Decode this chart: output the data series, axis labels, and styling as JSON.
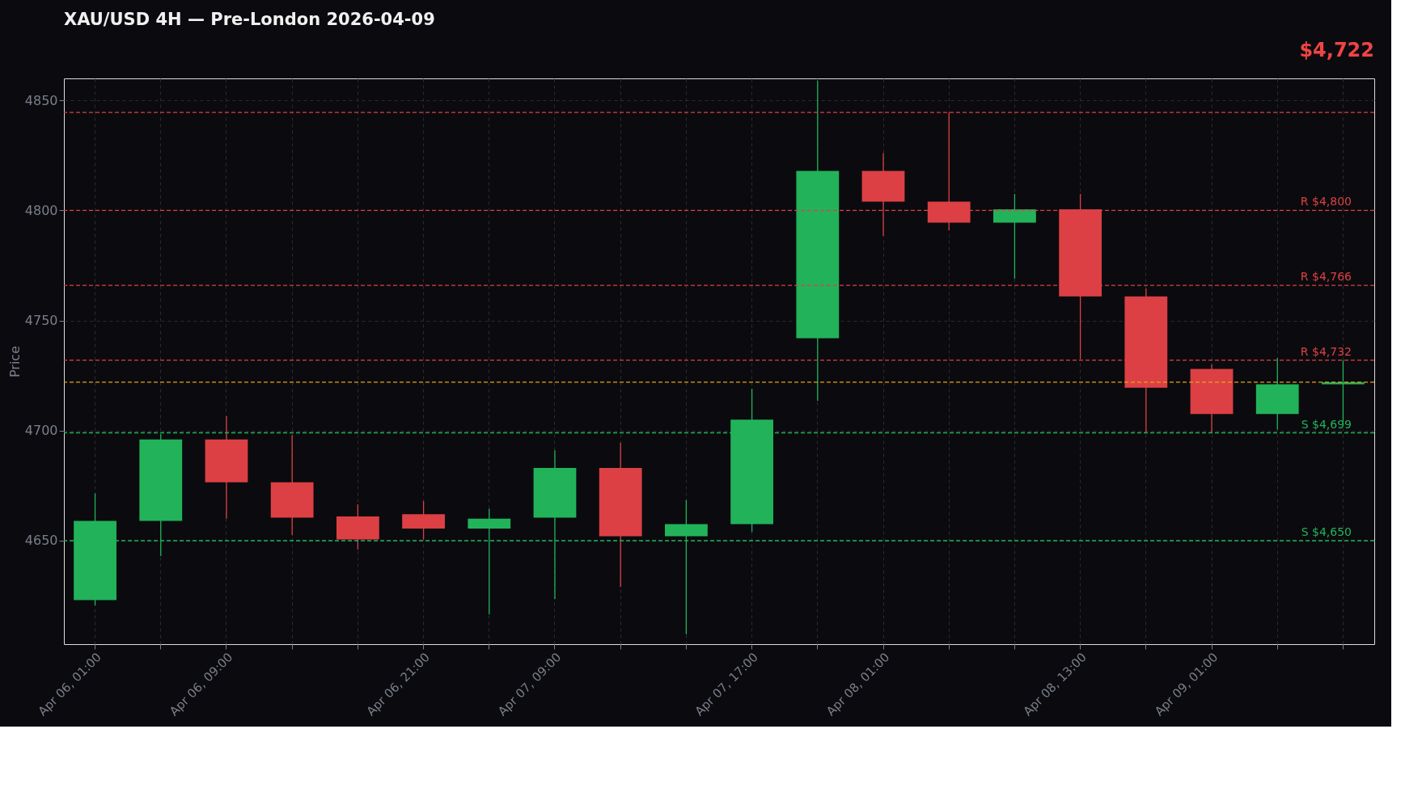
{
  "chart_data": {
    "type": "candlestick",
    "title": "XAU/USD 4H — Pre-London 2026-04-09",
    "ylabel": "Price",
    "categories": [
      "Apr 06, 01:00",
      null,
      "Apr 06, 09:00",
      null,
      null,
      "Apr 06, 21:00",
      null,
      "Apr 07, 09:00",
      null,
      null,
      "Apr 07, 17:00",
      null,
      "Apr 08, 01:00",
      null,
      null,
      "Apr 08, 13:00",
      null,
      "Apr 09, 01:00",
      null,
      null
    ],
    "ohlc": [
      [
        4623,
        4671.5,
        4620.5,
        4659
      ],
      [
        4659,
        4698.5,
        4643,
        4696
      ],
      [
        4696,
        4706.5,
        4660,
        4676.5
      ],
      [
        4676.5,
        4698,
        4652.5,
        4660.5
      ],
      [
        4661,
        4666.5,
        4646,
        4650.5
      ],
      [
        4662,
        4668,
        4650.5,
        4655.5
      ],
      [
        4655.5,
        4664.5,
        4616.5,
        4660
      ],
      [
        4660.5,
        4691,
        4623.5,
        4683
      ],
      [
        4683,
        4694.5,
        4629,
        4652
      ],
      [
        4652,
        4668.5,
        4607.5,
        4657.5
      ],
      [
        4657.5,
        4719,
        4654,
        4705
      ],
      [
        4742,
        4859,
        4713.5,
        4818
      ],
      [
        4818,
        4826,
        4788.5,
        4804
      ],
      [
        4804,
        4844.5,
        4791,
        4794.5
      ],
      [
        4794.5,
        4807.5,
        4769,
        4800.5
      ],
      [
        4800.5,
        4807.5,
        4732.5,
        4761
      ],
      [
        4761,
        4764.5,
        4699,
        4719.5
      ],
      [
        4728,
        4730,
        4699,
        4707.5
      ],
      [
        4707.5,
        4733,
        4700.5,
        4721
      ],
      [
        4721,
        4732,
        4704,
        4722
      ]
    ],
    "colors": [
      "#22b35a",
      "#22b35a",
      "#dc4044",
      "#dc4044",
      "#dc4044",
      "#dc4044",
      "#22b35a",
      "#22b35a",
      "#dc4044",
      "#22b35a",
      "#22b35a",
      "#22b35a",
      "#dc4044",
      "#dc4044",
      "#22b35a",
      "#dc4044",
      "#dc4044",
      "#dc4044",
      "#22b35a",
      "#22b35a"
    ],
    "ylim": [
      4603,
      4860
    ],
    "yticks": [
      4650,
      4700,
      4750,
      4800,
      4850
    ],
    "grid": true,
    "ref_lines": [
      {
        "axis": "y",
        "value": 4844.5,
        "color": "#dc4044",
        "line_style": "dashed"
      },
      {
        "axis": "y",
        "value": 4800,
        "label": "R $4,800",
        "color": "#dc4044",
        "line_style": "dashed"
      },
      {
        "axis": "y",
        "value": 4766,
        "label": "R $4,766",
        "color": "#dc4044",
        "line_style": "dashed"
      },
      {
        "axis": "y",
        "value": 4732,
        "label": "R $4,732",
        "color": "#dc4044",
        "line_style": "dashed"
      },
      {
        "axis": "y",
        "value": 4722,
        "color": "#e8a317",
        "line_style": "dashed"
      },
      {
        "axis": "y",
        "value": 4699,
        "label": "S $4,699",
        "color": "#22b35a",
        "line_style": "dashed"
      },
      {
        "axis": "y",
        "value": 4650,
        "label": "S $4,650",
        "color": "#22b35a",
        "line_style": "dashed"
      }
    ],
    "annotations": [
      "$4,722"
    ]
  }
}
